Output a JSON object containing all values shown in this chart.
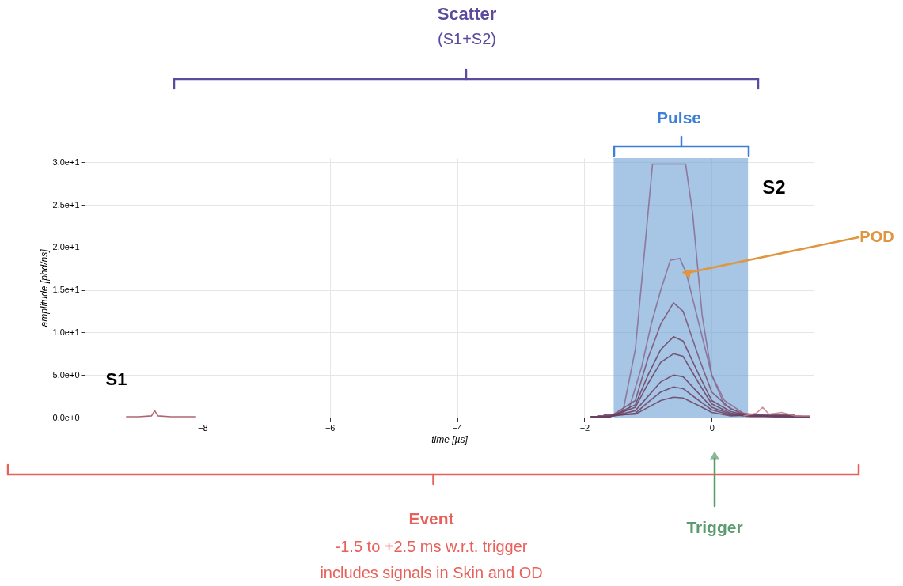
{
  "chart_data": {
    "type": "line",
    "xlabel": "time [µs]",
    "ylabel": "amplitude [phd/ns]",
    "xlim": [
      -9.85,
      1.6
    ],
    "ylim": [
      0,
      30.5
    ],
    "xticks": [
      -8,
      -6,
      -4,
      -2,
      0
    ],
    "yticks": [
      {
        "value": 0,
        "label": "0.0e+0"
      },
      {
        "value": 5,
        "label": "5.0e+0"
      },
      {
        "value": 10,
        "label": "1.0e+1"
      },
      {
        "value": 15,
        "label": "1.5e+1"
      },
      {
        "value": 20,
        "label": "2.0e+1"
      },
      {
        "value": 25,
        "label": "2.5e+1"
      },
      {
        "value": 30,
        "label": "3.0e+1"
      }
    ],
    "grid": true,
    "legend": false,
    "series": [
      {
        "color": "#a04a5a",
        "x": [
          -9.2,
          -9.0,
          -8.8,
          -8.75,
          -8.7,
          -8.5,
          -8.3,
          -8.1
        ],
        "values": [
          0.1,
          0.1,
          0.2,
          0.8,
          0.2,
          0.1,
          0.1,
          0.1
        ]
      },
      {
        "color": "#8a6a90",
        "x": [
          -1.9,
          -1.6,
          -1.4,
          -1.2,
          -1.05,
          -0.93,
          -0.41,
          -0.3,
          -0.15,
          0,
          0.2,
          0.5,
          1.0,
          1.55
        ],
        "values": [
          0.1,
          0.1,
          0.5,
          8,
          20,
          29.8,
          29.8,
          24,
          12,
          5,
          1.5,
          0.3,
          0.1,
          0.1
        ]
      },
      {
        "color": "#8a6a90",
        "x": [
          -1.9,
          -1.6,
          -1.3,
          -1.1,
          -0.95,
          -0.8,
          -0.65,
          -0.5,
          -0.4,
          -0.2,
          0,
          0.2,
          0.5,
          1.0,
          1.55
        ],
        "values": [
          0.1,
          0.1,
          1,
          6,
          11,
          15,
          18.5,
          18.7,
          17,
          11,
          5,
          2,
          0.5,
          0.1,
          0.1
        ]
      },
      {
        "color": "#7a5070",
        "x": [
          -1.9,
          -1.6,
          -1.2,
          -1.0,
          -0.8,
          -0.6,
          -0.45,
          -0.2,
          0,
          0.3,
          0.6,
          1.55
        ],
        "values": [
          0.1,
          0.1,
          2,
          7,
          11,
          13.5,
          12.5,
          7,
          3,
          1,
          0.2,
          0.1
        ]
      },
      {
        "color": "#6a4060",
        "x": [
          -1.9,
          -1.6,
          -1.2,
          -1.0,
          -0.8,
          -0.6,
          -0.45,
          -0.2,
          0,
          0.3,
          0.6,
          1.55
        ],
        "values": [
          0.1,
          0.1,
          1.5,
          5,
          8,
          9.5,
          9,
          5,
          2,
          0.7,
          0.2,
          0.1
        ]
      },
      {
        "color": "#6a4060",
        "x": [
          -1.9,
          -1.6,
          -1.2,
          -1.0,
          -0.8,
          -0.6,
          -0.45,
          -0.2,
          0,
          0.3,
          0.6,
          1.55
        ],
        "values": [
          0.1,
          0.1,
          1.2,
          4,
          6.5,
          7.5,
          7.2,
          4,
          1.6,
          0.5,
          0.2,
          0.1
        ]
      },
      {
        "color": "#6a4060",
        "x": [
          -1.9,
          -1.6,
          -1.2,
          -1.0,
          -0.8,
          -0.6,
          -0.45,
          -0.2,
          0,
          0.3,
          0.6,
          1.55
        ],
        "values": [
          0.1,
          0.1,
          0.8,
          2.5,
          4.2,
          5,
          4.8,
          2.8,
          1.2,
          0.4,
          0.1,
          0.1
        ]
      },
      {
        "color": "#6a4060",
        "x": [
          -1.8,
          -1.55,
          -1.2,
          -1.0,
          -0.8,
          -0.6,
          -0.45,
          -0.2,
          0,
          0.3,
          0.65,
          1.4
        ],
        "values": [
          0.2,
          0.2,
          0.5,
          1.8,
          3,
          3.6,
          3.4,
          2,
          0.9,
          0.3,
          0.2,
          0.2
        ]
      },
      {
        "color": "#6a4060",
        "x": [
          -1.7,
          -1.5,
          -1.2,
          -1.0,
          -0.8,
          -0.6,
          -0.45,
          -0.2,
          0,
          0.3,
          0.7,
          1.3
        ],
        "values": [
          0.3,
          0.3,
          0.4,
          1.2,
          2,
          2.4,
          2.3,
          1.4,
          0.6,
          0.2,
          0.3,
          0.3
        ]
      },
      {
        "color": "#c8808a",
        "x": [
          0.5,
          0.7,
          0.8,
          0.9,
          1.1,
          1.3,
          1.55
        ],
        "values": [
          0.2,
          0.5,
          1.2,
          0.4,
          0.6,
          0.2,
          0.2
        ]
      }
    ],
    "bands": [
      {
        "axis": "x",
        "from": -1.54,
        "to": 0.57,
        "label": "Pulse",
        "color": "#6d9fd4"
      }
    ],
    "annotations": [
      "Scatter",
      "(S1+S2)",
      "S2",
      {
        "text": "POD",
        "x": -0.4,
        "y": 17
      },
      "Event",
      "-1.5 to +2.5 ms w.r.t. trigger",
      "includes signals in Skin and OD",
      "Trigger",
      "S1"
    ]
  }
}
